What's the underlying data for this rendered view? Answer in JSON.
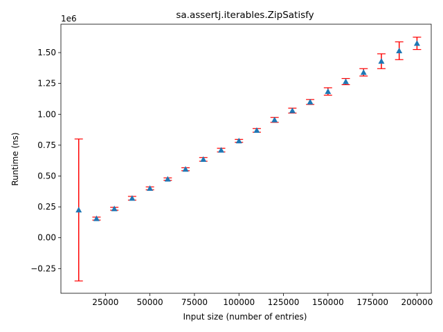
{
  "chart_data": {
    "type": "scatter",
    "title": "sa.assertj.iterables.ZipSatisfy",
    "xlabel": "Input size (number of entries)",
    "ylabel": "Runtime (ns)",
    "y_offset_label": "1e6",
    "xlim": [
      -0.0,
      208000
    ],
    "ylim": [
      -0.45,
      1.73
    ],
    "x_ticks": [
      25000,
      50000,
      75000,
      100000,
      125000,
      150000,
      175000,
      200000
    ],
    "y_ticks": [
      -0.25,
      0.0,
      0.25,
      0.5,
      0.75,
      1.0,
      1.25,
      1.5
    ],
    "x_tick_labels": [
      "25000",
      "50000",
      "75000",
      "100000",
      "125000",
      "150000",
      "175000",
      "200000"
    ],
    "y_tick_labels": [
      "−0.25",
      "0.00",
      "0.25",
      "0.50",
      "0.75",
      "1.00",
      "1.25",
      "1.50"
    ],
    "marker": "triangle",
    "marker_color": "#1f77b4",
    "errorbar_color": "#ff0000",
    "grid": false,
    "series": [
      {
        "points": [
          {
            "x": 10000,
            "y": 0.225,
            "yerr": 0.575
          },
          {
            "x": 20000,
            "y": 0.155,
            "yerr": 0.012
          },
          {
            "x": 30000,
            "y": 0.235,
            "yerr": 0.012
          },
          {
            "x": 40000,
            "y": 0.32,
            "yerr": 0.015
          },
          {
            "x": 50000,
            "y": 0.4,
            "yerr": 0.012
          },
          {
            "x": 60000,
            "y": 0.475,
            "yerr": 0.01
          },
          {
            "x": 70000,
            "y": 0.555,
            "yerr": 0.012
          },
          {
            "x": 80000,
            "y": 0.635,
            "yerr": 0.015
          },
          {
            "x": 90000,
            "y": 0.71,
            "yerr": 0.015
          },
          {
            "x": 100000,
            "y": 0.785,
            "yerr": 0.012
          },
          {
            "x": 110000,
            "y": 0.87,
            "yerr": 0.015
          },
          {
            "x": 120000,
            "y": 0.955,
            "yerr": 0.02
          },
          {
            "x": 130000,
            "y": 1.03,
            "yerr": 0.02
          },
          {
            "x": 140000,
            "y": 1.1,
            "yerr": 0.02
          },
          {
            "x": 150000,
            "y": 1.185,
            "yerr": 0.03
          },
          {
            "x": 160000,
            "y": 1.265,
            "yerr": 0.025
          },
          {
            "x": 170000,
            "y": 1.34,
            "yerr": 0.03
          },
          {
            "x": 180000,
            "y": 1.43,
            "yerr": 0.06
          },
          {
            "x": 190000,
            "y": 1.515,
            "yerr": 0.072
          },
          {
            "x": 200000,
            "y": 1.575,
            "yerr": 0.05
          }
        ]
      }
    ]
  }
}
